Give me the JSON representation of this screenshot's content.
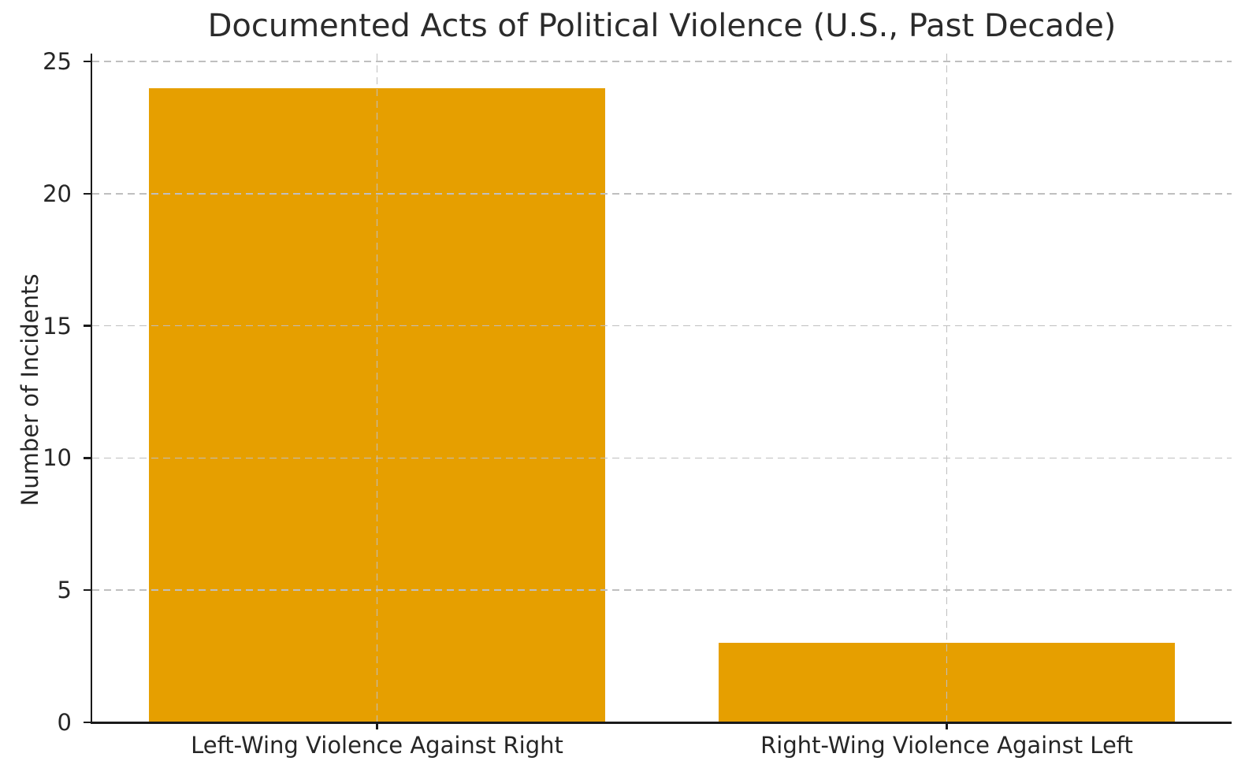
{
  "chart_data": {
    "type": "bar",
    "title": "Documented Acts of Political Violence (U.S., Past Decade)",
    "categories": [
      "Left-Wing Violence Against Right",
      "Right-Wing Violence Against Left"
    ],
    "values": [
      24,
      3
    ],
    "xlabel": "",
    "ylabel": "Number of Incidents",
    "ylim": [
      0,
      25.3
    ],
    "yticks": [
      0,
      5,
      10,
      15,
      20,
      25
    ],
    "bar_color": "#E69F00",
    "bar_width_fraction": 0.8,
    "grid": true,
    "grid_style": "dashed",
    "grid_color": "#BFBFBF",
    "grid_over_bars": true,
    "legend": "none",
    "background_color": "#FFFFFF",
    "text_color": "#262626",
    "spine_color": "#1A1A1A"
  }
}
